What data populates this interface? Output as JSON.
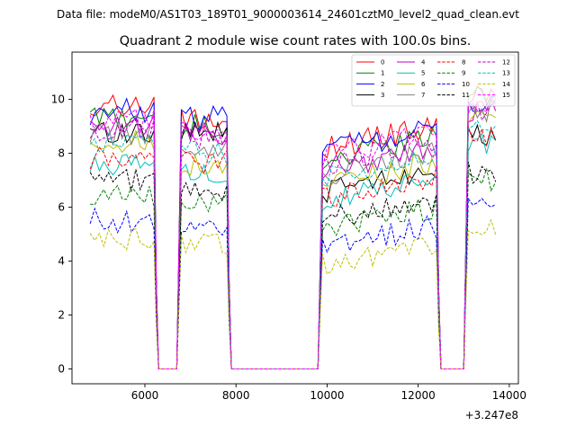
{
  "suptitle": "Data file: modeM0/AS1T03_189T01_9000003614_24601cztM0_level2_quad_clean.evt",
  "chart_data": {
    "type": "line",
    "title": "Quadrant 2 module wise count rates with 100.0s bins.",
    "xlabel": "",
    "ylabel": "",
    "x_offset_label": "+3.247e8",
    "xlim": [
      4400,
      14200
    ],
    "ylim": [
      -0.55,
      11.75
    ],
    "xticks": [
      6000,
      8000,
      10000,
      12000,
      14000
    ],
    "xtick_labels": [
      "6000",
      "8000",
      "10000",
      "12000",
      "14000"
    ],
    "yticks": [
      0,
      2,
      4,
      6,
      8,
      10
    ],
    "ytick_labels": [
      "0",
      "2",
      "4",
      "6",
      "8",
      "10"
    ],
    "grid": false,
    "legend_position": "top-right",
    "legend_columns": 4,
    "segments": [
      {
        "start": 4800,
        "end": 6200
      },
      {
        "start": 6800,
        "end": 7800
      },
      {
        "start": 9900,
        "end": 12400
      },
      {
        "start": 13100,
        "end": 13700
      }
    ],
    "gap_starts": [
      6300,
      7900,
      12500
    ],
    "gap_ends": [
      6700,
      9800,
      13000
    ],
    "series": [
      {
        "name": "0",
        "color": "#ff0000",
        "dash": "solid",
        "levels": [
          9.8,
          9.2,
          8.6,
          10.2
        ]
      },
      {
        "name": "1",
        "color": "#008000",
        "dash": "solid",
        "levels": [
          9.3,
          9.0,
          8.2,
          10.0
        ]
      },
      {
        "name": "2",
        "color": "#0000ff",
        "dash": "solid",
        "levels": [
          9.6,
          9.3,
          8.5,
          9.8
        ]
      },
      {
        "name": "3",
        "color": "#000000",
        "dash": "solid",
        "levels": [
          8.8,
          8.8,
          7.0,
          8.6
        ]
      },
      {
        "name": "4",
        "color": "#bf00bf",
        "dash": "solid",
        "levels": [
          9.0,
          8.7,
          7.8,
          9.6
        ]
      },
      {
        "name": "5",
        "color": "#00bfbf",
        "dash": "solid",
        "levels": [
          7.6,
          7.2,
          6.6,
          8.4
        ]
      },
      {
        "name": "6",
        "color": "#bfbf00",
        "dash": "solid",
        "levels": [
          8.4,
          7.6,
          7.3,
          9.2
        ]
      },
      {
        "name": "7",
        "color": "#808080",
        "dash": "solid",
        "levels": [
          8.7,
          8.2,
          7.6,
          9.6
        ]
      },
      {
        "name": "8",
        "color": "#ff0000",
        "dash": "dashed",
        "levels": [
          7.8,
          7.7,
          6.7,
          8.7
        ]
      },
      {
        "name": "9",
        "color": "#008000",
        "dash": "dashed",
        "levels": [
          6.4,
          6.1,
          5.6,
          7.0
        ]
      },
      {
        "name": "10",
        "color": "#0000ff",
        "dash": "dashed",
        "levels": [
          5.5,
          5.2,
          4.9,
          6.0
        ]
      },
      {
        "name": "11",
        "color": "#000000",
        "dash": "dashed",
        "levels": [
          7.0,
          6.6,
          5.9,
          7.3
        ]
      },
      {
        "name": "12",
        "color": "#bf00bf",
        "dash": "dashed",
        "levels": [
          8.9,
          8.6,
          8.0,
          9.5
        ]
      },
      {
        "name": "13",
        "color": "#00bfbf",
        "dash": "dashed",
        "levels": [
          8.4,
          8.0,
          7.5,
          9.0
        ]
      },
      {
        "name": "14",
        "color": "#bfbf00",
        "dash": "dashed",
        "levels": [
          4.8,
          4.7,
          4.3,
          5.1
        ]
      },
      {
        "name": "15",
        "color": "#ff00ff",
        "dash": "dashed",
        "levels": [
          9.2,
          8.7,
          8.3,
          9.8
        ]
      }
    ],
    "bin_width": 100,
    "gap_value": 0
  }
}
